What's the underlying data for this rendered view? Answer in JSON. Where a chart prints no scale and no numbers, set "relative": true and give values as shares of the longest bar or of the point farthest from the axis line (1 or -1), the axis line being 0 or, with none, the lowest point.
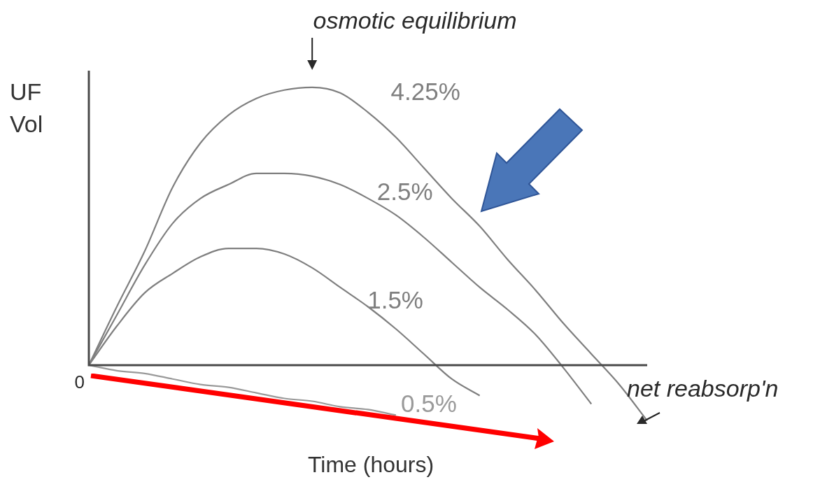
{
  "chart_data": {
    "type": "line",
    "relative": true,
    "xlabel": "Time (hours)",
    "ylabel": "UF Vol",
    "annotations": [
      "osmotic equilibrium",
      "net reabsorp'n",
      "0"
    ],
    "categories": [
      null,
      null,
      null,
      null,
      null,
      null,
      null,
      null,
      null,
      null,
      null,
      null,
      null,
      null,
      null,
      null,
      null,
      null,
      null,
      null,
      null
    ],
    "series": [
      {
        "name": "4.25%",
        "color": "#7f7f7f",
        "values": [
          0,
          0.21,
          0.41,
          0.64,
          0.8,
          0.9,
          0.96,
          0.99,
          1,
          0.98,
          0.91,
          0.82,
          0.71,
          0.6,
          0.5,
          0.38,
          0.27,
          0.15,
          0.04,
          -0.07,
          -0.2
        ]
      },
      {
        "name": "2.5%",
        "color": "#7f7f7f",
        "values": [
          0,
          0.18,
          0.36,
          0.51,
          0.6,
          0.65,
          0.69,
          0.69,
          0.68,
          0.65,
          0.6,
          0.54,
          0.46,
          0.37,
          0.28,
          0.2,
          0.11,
          -0.01,
          -0.14,
          null,
          null
        ]
      },
      {
        "name": "1.5%",
        "color": "#7f7f7f",
        "values": [
          0,
          0.14,
          0.26,
          0.33,
          0.39,
          0.42,
          0.42,
          0.4,
          0.35,
          0.28,
          0.21,
          0.13,
          0.04,
          -0.05,
          -0.11,
          null,
          null,
          null,
          null,
          null,
          null
        ]
      },
      {
        "name": "0.5%",
        "color": "#9a9a9a",
        "values": [
          0,
          -0.02,
          -0.03,
          -0.05,
          -0.07,
          -0.08,
          -0.1,
          -0.12,
          -0.13,
          -0.15,
          -0.16,
          -0.18,
          null,
          null,
          null,
          null,
          null,
          null,
          null,
          null,
          null
        ]
      }
    ],
    "legend": false,
    "marker": "none",
    "line_style": "solid"
  }
}
